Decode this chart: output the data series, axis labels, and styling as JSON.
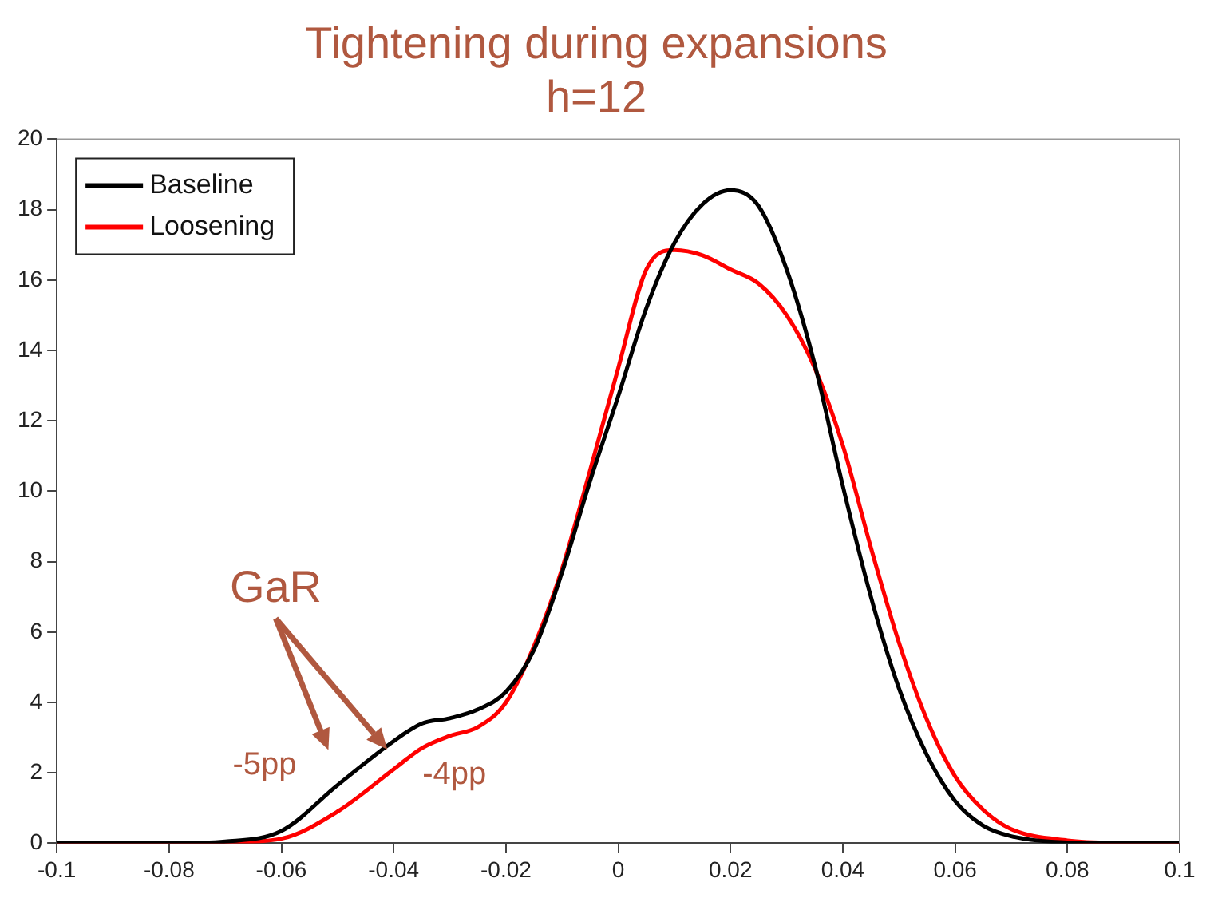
{
  "chart_data": {
    "type": "line",
    "title": "Tightening during expansions",
    "subtitle": "h=12",
    "x": [
      -0.1,
      -0.08,
      -0.07,
      -0.06,
      -0.05,
      -0.04,
      -0.035,
      -0.03,
      -0.025,
      -0.02,
      -0.015,
      -0.01,
      -0.005,
      0,
      0.005,
      0.01,
      0.015,
      0.02,
      0.025,
      0.03,
      0.035,
      0.04,
      0.045,
      0.05,
      0.055,
      0.06,
      0.065,
      0.07,
      0.08,
      0.09,
      0.1
    ],
    "series": [
      {
        "name": "Baseline",
        "color": "#000000",
        "values": [
          0,
          0,
          0.05,
          0.35,
          1.65,
          2.9,
          3.4,
          3.55,
          3.8,
          4.3,
          5.5,
          7.7,
          10.3,
          12.7,
          15.2,
          17.05,
          18.15,
          18.55,
          18.1,
          16.3,
          13.6,
          10.15,
          7.0,
          4.4,
          2.5,
          1.2,
          0.5,
          0.2,
          0.02,
          0,
          0
        ]
      },
      {
        "name": "Loosening",
        "color": "#ff0000",
        "values": [
          0,
          0,
          0.02,
          0.13,
          0.9,
          2.1,
          2.7,
          3.05,
          3.3,
          4.0,
          5.6,
          7.8,
          10.6,
          13.5,
          16.3,
          16.85,
          16.7,
          16.3,
          15.9,
          15.0,
          13.5,
          11.3,
          8.4,
          5.7,
          3.5,
          1.9,
          0.95,
          0.4,
          0.08,
          0.01,
          0
        ]
      }
    ],
    "xlim": [
      -0.1,
      0.1
    ],
    "xticks": [
      -0.1,
      -0.08,
      -0.06,
      -0.04,
      -0.02,
      0,
      0.02,
      0.04,
      0.06,
      0.08,
      0.1
    ],
    "ylim": [
      0,
      20
    ],
    "yticks": [
      0,
      2,
      4,
      6,
      8,
      10,
      12,
      14,
      16,
      18,
      20
    ],
    "grid": false,
    "legend": "top left",
    "marker": "none",
    "line_style": "solid",
    "annotations": [
      "GaR",
      "-5pp",
      "-4pp"
    ]
  }
}
